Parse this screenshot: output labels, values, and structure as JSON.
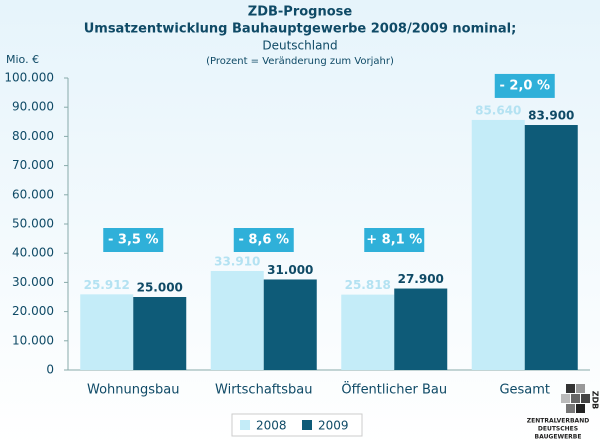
{
  "chart_data": {
    "type": "bar",
    "title": "ZDB-Prognose",
    "subtitle": "Umsatzentwicklung Bauhauptgewerbe 2008/2009 nominal;",
    "region": "Deutschland",
    "note": "(Prozent = Veränderung zum Vorjahr)",
    "y_label": "Mio. €",
    "categories": [
      "Wohnungsbau",
      "Wirtschaftsbau",
      "Öffentlicher Bau",
      "Gesamt"
    ],
    "series": [
      {
        "name": "2008",
        "color": "#c4ecf8",
        "values": [
          25912,
          33910,
          25818,
          85640
        ],
        "value_labels": [
          "25.912",
          "33.910",
          "25.818",
          "85.640"
        ]
      },
      {
        "name": "2009",
        "color": "#0e5b78",
        "values": [
          25000,
          31000,
          27900,
          83900
        ],
        "value_labels": [
          "25.000",
          "31.000",
          "27.900",
          "83.900"
        ]
      }
    ],
    "annotations": [
      "- 3,5 %",
      "- 8,6 %",
      "+ 8,1 %",
      "- 2,0 %"
    ],
    "ylim": [
      0,
      100000
    ],
    "yticks": [
      0,
      {
        "value": 10000,
        "label": "10.000"
      },
      {
        "value": 20000,
        "label": "20.000"
      },
      {
        "value": 30000,
        "label": "30.000"
      },
      {
        "value": 40000,
        "label": "40.000"
      },
      {
        "value": 50000,
        "label": "50.000"
      },
      {
        "value": 60000,
        "label": "60.000"
      },
      {
        "value": 70000,
        "label": "70.000"
      },
      {
        "value": 80000,
        "label": "80.000"
      },
      {
        "value": 90000,
        "label": "90.000"
      },
      {
        "value": 100000,
        "label": "100.000"
      }
    ],
    "grid": false,
    "legend": "bottom"
  },
  "logo": {
    "lines": [
      "ZENTRALVERBAND",
      "DEUTSCHES",
      "BAUGEWERBE"
    ],
    "mark": "ZDB"
  }
}
